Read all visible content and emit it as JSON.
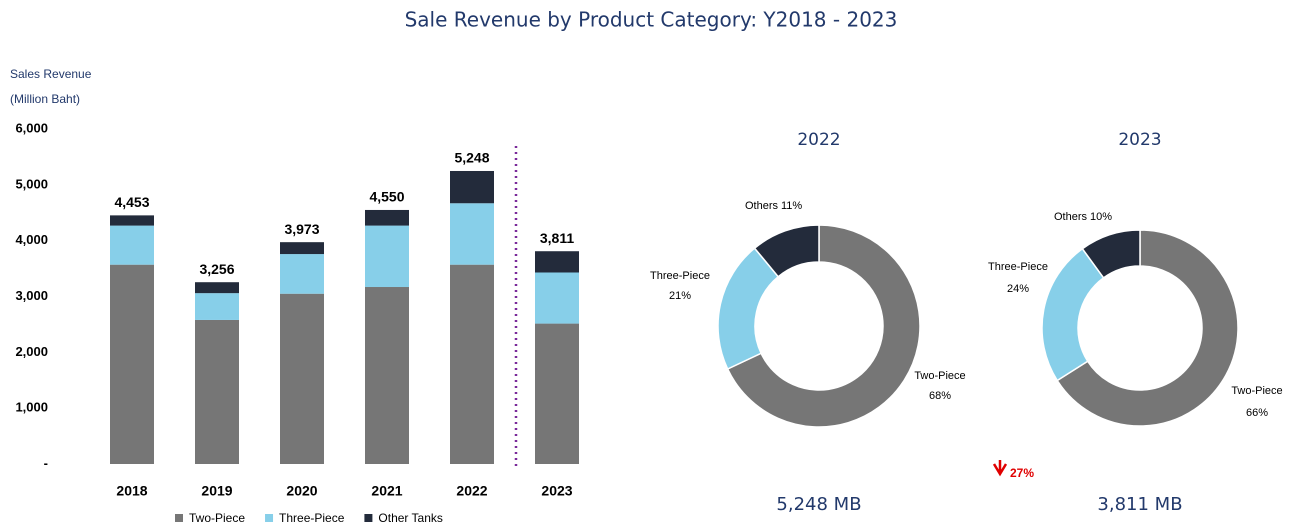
{
  "title": "Sale Revenue by Product Category: Y2018 - 2023",
  "change_label": "27%",
  "chart_data": [
    {
      "type": "bar",
      "stacked": true,
      "y_label": [
        "Sales Revenue",
        "(Million Baht)"
      ],
      "categories": [
        "2018",
        "2019",
        "2020",
        "2021",
        "2022",
        "2023"
      ],
      "series": [
        {
          "name": "Two-Piece",
          "color": "#767676",
          "values": [
            3570,
            2580,
            3050,
            3170,
            3570,
            2515
          ]
        },
        {
          "name": "Three-Piece",
          "color": "#87cfe9",
          "values": [
            700,
            480,
            710,
            1100,
            1100,
            915
          ]
        },
        {
          "name": "Other Tanks",
          "color": "#232b3b",
          "values": [
            183,
            196,
            213,
            280,
            578,
            381
          ]
        }
      ],
      "totals": [
        4453,
        3256,
        3973,
        4550,
        5248,
        3811
      ],
      "total_labels": [
        "4,453",
        "3,256",
        "3,973",
        "4,550",
        "5,248",
        "3,811"
      ],
      "ylim": [
        0,
        6000
      ],
      "yticks": [
        {
          "value": 0,
          "label": "-"
        },
        {
          "value": 1000,
          "label": "1,000"
        },
        {
          "value": 2000,
          "label": "2,000"
        },
        {
          "value": 3000,
          "label": "3,000"
        },
        {
          "value": 4000,
          "label": "4,000"
        },
        {
          "value": 5000,
          "label": "5,000"
        },
        {
          "value": 6000,
          "label": "6,000"
        }
      ],
      "grid": false,
      "legend": "bottom"
    },
    {
      "type": "pie",
      "donut": true,
      "title": "2022",
      "total_label": "5,248 MB",
      "categories": [
        "Two-Piece",
        "Three-Piece",
        "Others"
      ],
      "values": [
        68,
        21,
        11
      ],
      "value_labels": [
        "68%",
        "21%",
        "11%"
      ],
      "colors": [
        "#767676",
        "#87cfe9",
        "#232b3b"
      ]
    },
    {
      "type": "pie",
      "donut": true,
      "title": "2023",
      "total_label": "3,811 MB",
      "categories": [
        "Two-Piece",
        "Three-Piece",
        "Others"
      ],
      "values": [
        66,
        24,
        10
      ],
      "value_labels": [
        "66%",
        "24%",
        "10%"
      ],
      "colors": [
        "#767676",
        "#87cfe9",
        "#232b3b"
      ]
    }
  ]
}
